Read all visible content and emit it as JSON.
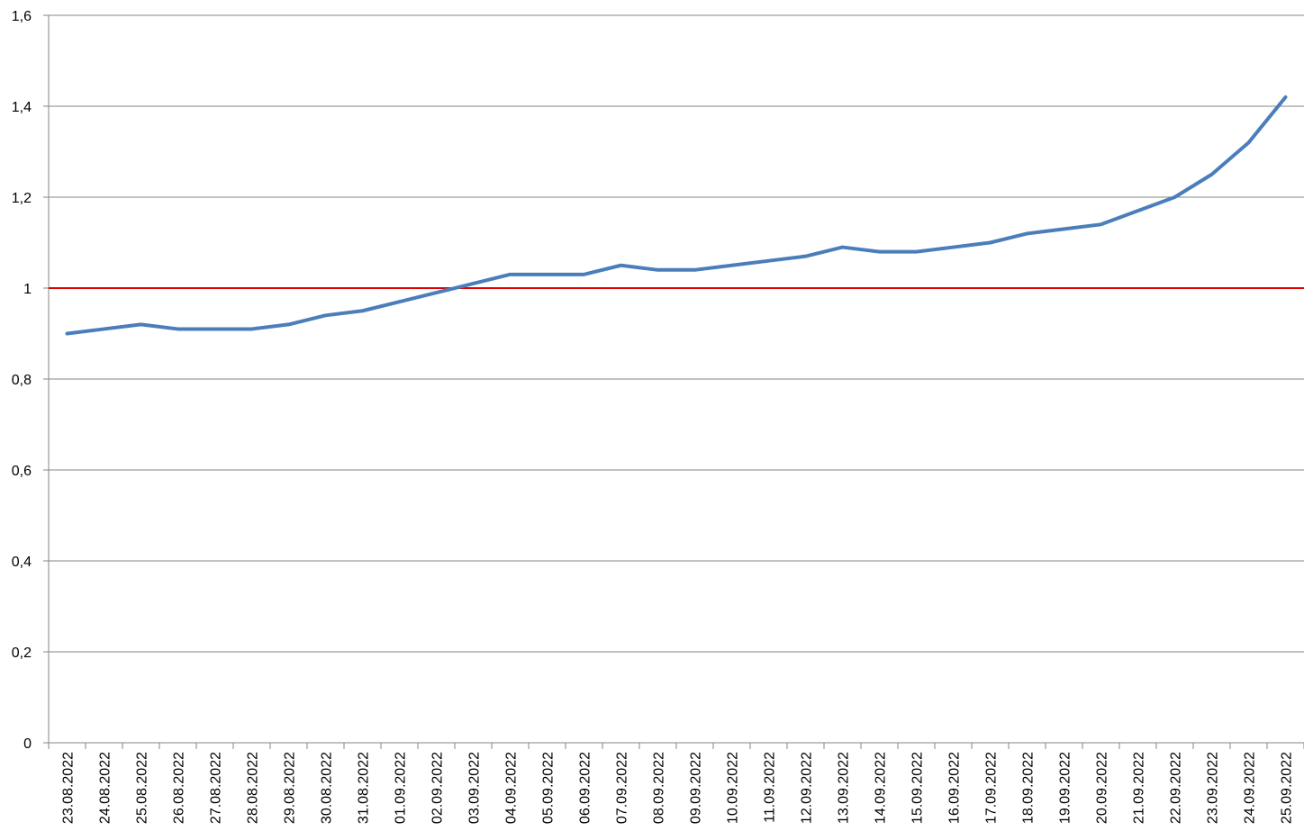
{
  "chart_data": {
    "type": "line",
    "categories": [
      "23.08.2022",
      "24.08.2022",
      "25.08.2022",
      "26.08.2022",
      "27.08.2022",
      "28.08.2022",
      "29.08.2022",
      "30.08.2022",
      "31.08.2022",
      "01.09.2022",
      "02.09.2022",
      "03.09.2022",
      "04.09.2022",
      "05.09.2022",
      "06.09.2022",
      "07.09.2022",
      "08.09.2022",
      "09.09.2022",
      "10.09.2022",
      "11.09.2022",
      "12.09.2022",
      "13.09.2022",
      "14.09.2022",
      "15.09.2022",
      "16.09.2022",
      "17.09.2022",
      "18.09.2022",
      "19.09.2022",
      "20.09.2022",
      "21.09.2022",
      "22.09.2022",
      "23.09.2022",
      "24.09.2022",
      "25.09.2022"
    ],
    "values": [
      0.9,
      0.91,
      0.92,
      0.91,
      0.91,
      0.91,
      0.92,
      0.94,
      0.95,
      0.97,
      0.99,
      1.01,
      1.03,
      1.03,
      1.03,
      1.05,
      1.04,
      1.04,
      1.05,
      1.06,
      1.07,
      1.09,
      1.08,
      1.08,
      1.09,
      1.1,
      1.12,
      1.13,
      1.14,
      1.17,
      1.2,
      1.25,
      1.32,
      1.42
    ],
    "color": "#4a7ebb",
    "ylim": [
      0,
      1.6
    ],
    "yticks": [
      0,
      {
        "value": 0.2,
        "label": "0,2"
      },
      {
        "value": 0.4,
        "label": "0,4"
      },
      {
        "value": 0.6,
        "label": "0,6"
      },
      {
        "value": 0.8,
        "label": "0,8"
      },
      1,
      {
        "value": 1.2,
        "label": "1,2"
      },
      {
        "value": 1.4,
        "label": "1,4"
      },
      {
        "value": 1.6,
        "label": "1,6"
      }
    ],
    "grid": true,
    "reference_line": {
      "value": 1,
      "color": "#e00000"
    }
  }
}
